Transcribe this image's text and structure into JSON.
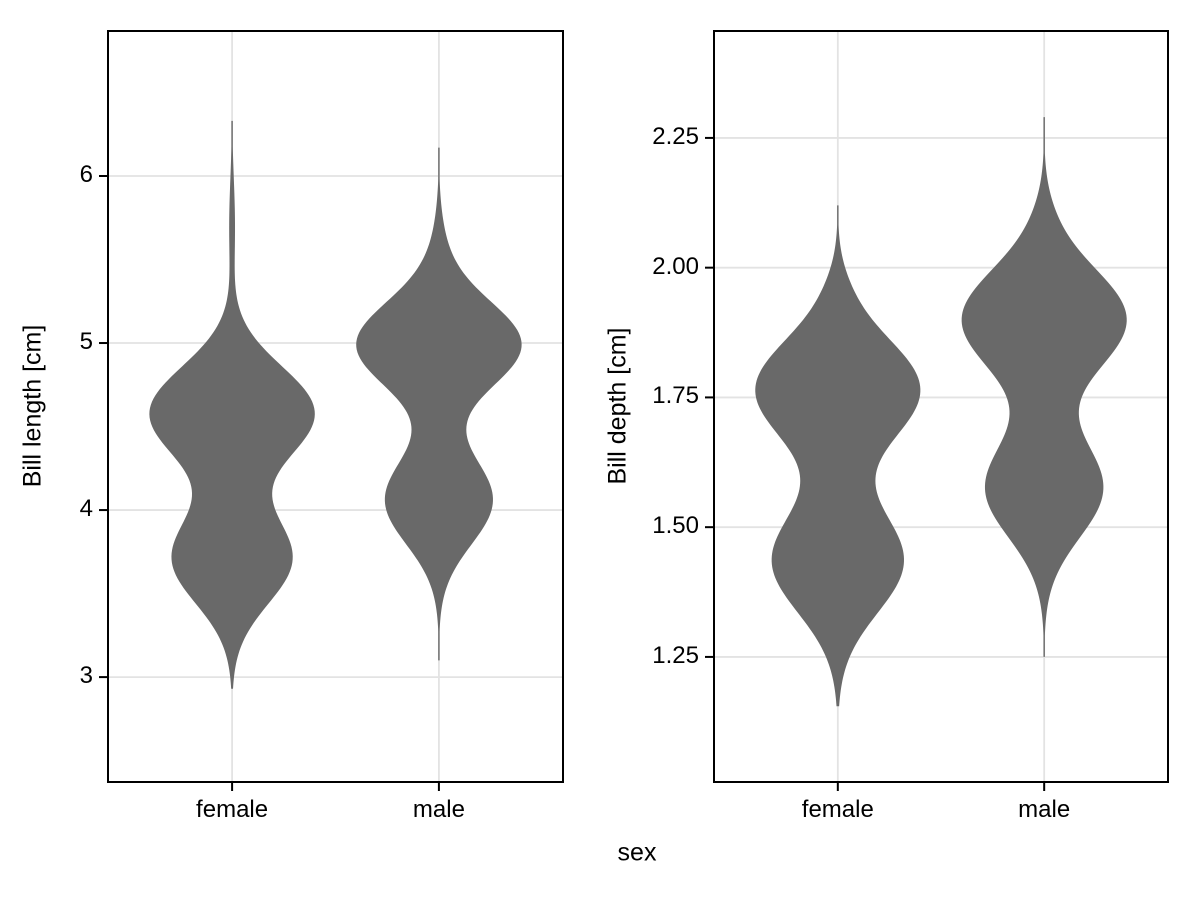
{
  "chart_data": {
    "type": "violin",
    "title": "",
    "xlabel": "sex",
    "categories": [
      "female",
      "male"
    ],
    "legend": "none",
    "grid": "major",
    "panels": [
      {
        "ylabel": "Bill length [cm]",
        "ylim": [
          2.372,
          6.868
        ],
        "yticks": [
          {
            "value": 3,
            "label": "3"
          },
          {
            "value": 4,
            "label": "4"
          },
          {
            "value": 5,
            "label": "5"
          },
          {
            "value": 6,
            "label": "6"
          }
        ],
        "violins": [
          {
            "category": "female",
            "value_range": [
              2.93,
              6.33
            ],
            "modes": [
              3.71,
              4.6
            ],
            "waist": 4.18,
            "kde_mixture": [
              {
                "mean": 3.71,
                "sd": 0.27,
                "weight": 0.4
              },
              {
                "mean": 4.58,
                "sd": 0.28,
                "weight": 0.57
              },
              {
                "mean": 5.7,
                "sd": 0.28,
                "weight": 0.02
              }
            ]
          },
          {
            "category": "male",
            "value_range": [
              3.1,
              6.17
            ],
            "modes": [
              4.07,
              5.0
            ],
            "waist": 4.51,
            "kde_mixture": [
              {
                "mean": 4.06,
                "sd": 0.265,
                "weight": 0.38
              },
              {
                "mean": 4.99,
                "sd": 0.26,
                "weight": 0.57
              },
              {
                "mean": 5.55,
                "sd": 0.22,
                "weight": 0.025
              }
            ]
          }
        ]
      },
      {
        "ylabel": "Bill depth [cm]",
        "ylim": [
          1.009,
          2.456
        ],
        "yticks": [
          {
            "value": 1.25,
            "label": "1.25"
          },
          {
            "value": 1.5,
            "label": "1.50"
          },
          {
            "value": 1.75,
            "label": "1.75"
          },
          {
            "value": 2.0,
            "label": "2.00"
          },
          {
            "value": 2.25,
            "label": "2.25"
          }
        ],
        "violins": [
          {
            "category": "female",
            "value_range": [
              1.155,
              2.12
            ],
            "modes": [
              1.43,
              1.76
            ],
            "waist": 1.58,
            "kde_mixture": [
              {
                "mean": 1.435,
                "sd": 0.1,
                "weight": 0.44
              },
              {
                "mean": 1.765,
                "sd": 0.1,
                "weight": 0.55
              },
              {
                "mean": 1.96,
                "sd": 0.05,
                "weight": 0.01
              }
            ]
          },
          {
            "category": "male",
            "value_range": [
              1.25,
              2.29
            ],
            "modes": [
              1.57,
              1.9
            ],
            "waist": 1.71,
            "kde_mixture": [
              {
                "mean": 1.575,
                "sd": 0.095,
                "weight": 0.4
              },
              {
                "mean": 1.9,
                "sd": 0.1,
                "weight": 0.59
              },
              {
                "mean": 2.1,
                "sd": 0.055,
                "weight": 0.01
              }
            ]
          }
        ]
      }
    ],
    "style": {
      "violin_fill": "#696969",
      "grid_color": "#e3e3e3",
      "panel_border_color": "#000000",
      "tick_color": "#000000",
      "text_color": "#000000",
      "background": "#ffffff"
    }
  }
}
